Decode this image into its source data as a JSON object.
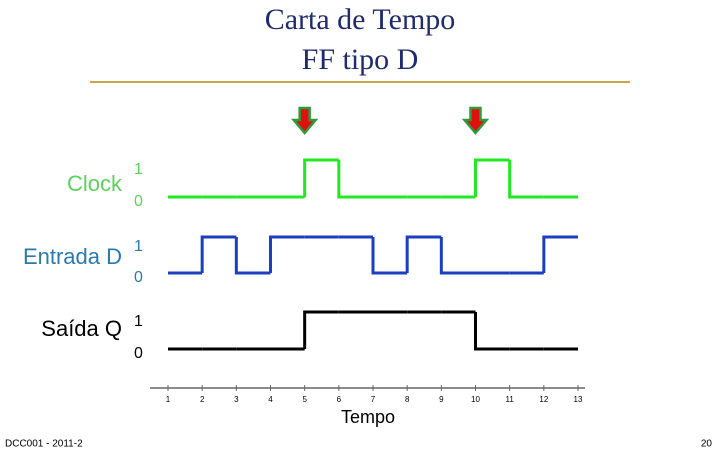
{
  "title_lines": [
    "Carta de Tempo",
    "FF tipo D"
  ],
  "time": {
    "ticks": [
      1,
      2,
      3,
      4,
      5,
      6,
      7,
      8,
      9,
      10,
      11,
      12,
      13
    ],
    "label": "Tempo"
  },
  "clock_arrows": [
    5,
    10
  ],
  "signals": [
    {
      "name": "Clock",
      "high_label": "1",
      "low_label": "0",
      "color": "#22e822",
      "label_color": "#5ad45a",
      "levels": [
        0,
        0,
        0,
        0,
        1,
        0,
        0,
        0,
        0,
        1,
        0,
        0
      ]
    },
    {
      "name": "Entrada D",
      "high_label": "1",
      "low_label": "0",
      "color": "#1c3fbf",
      "label_color": "#2a7ab0",
      "levels": [
        0,
        1,
        0,
        1,
        1,
        1,
        0,
        1,
        0,
        0,
        0,
        1
      ]
    },
    {
      "name": "Saída Q",
      "high_label": "1",
      "low_label": "0",
      "color": "#000000",
      "label_color": "#000000",
      "levels": [
        0,
        0,
        0,
        0,
        1,
        1,
        1,
        1,
        1,
        0,
        0,
        0
      ]
    }
  ],
  "footer": {
    "left": "DCC001 - 2011-2",
    "page": "20"
  }
}
